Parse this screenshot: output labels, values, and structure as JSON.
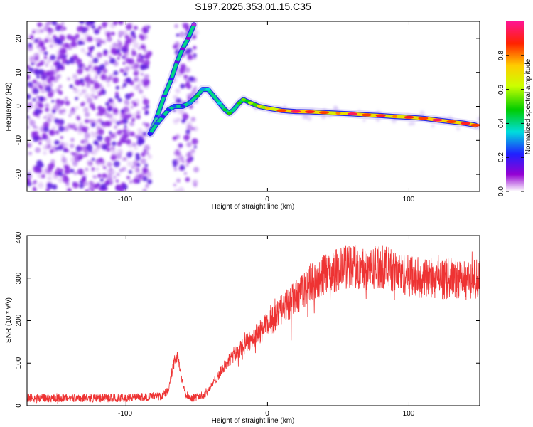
{
  "title": "S197.2025.353.01.15.C35",
  "chart_data": [
    {
      "type": "heatmap",
      "name": "spectrogram",
      "xlabel": "Height of straight line (km)",
      "ylabel": "Frequency (Hz)",
      "xlim": [
        -170,
        150
      ],
      "ylim": [
        -25,
        25
      ],
      "xticks": [
        -100,
        0,
        100
      ],
      "yticks": [
        -20,
        -10,
        0,
        10,
        20
      ],
      "xtick_labels": [
        "-100",
        "0",
        "100"
      ],
      "ytick_labels": [
        "-20",
        "-10",
        "0",
        "10",
        "20"
      ],
      "colorbar": {
        "label": "Normalized spectral amplitude",
        "range": [
          0,
          1
        ],
        "ticks": [
          0,
          0.2,
          0.4,
          0.6,
          0.8
        ],
        "tick_labels": [
          "0.0",
          "0.2",
          "0.4",
          "0.6",
          "0.8"
        ]
      },
      "trace": {
        "x": [
          -83,
          -78,
          -74,
          -70,
          -66,
          -60,
          -55,
          -50,
          -46,
          -42,
          -38,
          -34,
          -30,
          -27,
          -24,
          -20,
          -17,
          -12,
          -6,
          0,
          10,
          20,
          30,
          40,
          50,
          60,
          70,
          80,
          90,
          100,
          110,
          120,
          130,
          140,
          147
        ],
        "y": [
          -8,
          -5,
          -3,
          -1,
          0,
          0,
          1,
          3,
          5,
          5,
          3,
          1,
          -1,
          -2,
          -1,
          1,
          2,
          1,
          0,
          -0.5,
          -1.2,
          -1.5,
          -1.6,
          -1.8,
          -2,
          -2.2,
          -2.5,
          -2.7,
          -3,
          -3.2,
          -3.5,
          -4,
          -4.5,
          -5,
          -5.5
        ],
        "amplitude": [
          0.2,
          0.25,
          0.2,
          0.22,
          0.25,
          0.2,
          0.3,
          0.45,
          0.3,
          0.35,
          0.4,
          0.35,
          0.45,
          0.5,
          0.4,
          0.5,
          0.55,
          0.6,
          0.7,
          0.75,
          0.85,
          0.95,
          0.9,
          0.85,
          0.8,
          0.95,
          0.85,
          0.9,
          0.8,
          0.9,
          0.85,
          0.95,
          0.85,
          0.9,
          0.85
        ]
      },
      "branch": {
        "x": [
          -83,
          -78,
          -73,
          -68,
          -64,
          -60,
          -56,
          -52
        ],
        "y": [
          -8,
          -3,
          3,
          8,
          13,
          17,
          20,
          24
        ],
        "amplitude": [
          0.2,
          0.22,
          0.18,
          0.2,
          0.15,
          0.12,
          0.1,
          0.08
        ]
      }
    },
    {
      "type": "line",
      "name": "snr",
      "xlabel": "Height of straight line (km)",
      "ylabel": "SNR (10 * v/v)",
      "xlim": [
        -170,
        150
      ],
      "ylim": [
        0,
        400
      ],
      "xticks": [
        -100,
        0,
        100
      ],
      "yticks": [
        0,
        100,
        200,
        300,
        400
      ],
      "xtick_labels": [
        "-100",
        "0",
        "100"
      ],
      "ytick_labels": [
        "0",
        "100",
        "200",
        "300",
        "400"
      ],
      "color": "#ee3333",
      "envelope": {
        "x": [
          -170,
          -100,
          -75,
          -70,
          -67,
          -64,
          -61,
          -58,
          -55,
          -50,
          -45,
          -40,
          -35,
          -30,
          -25,
          -20,
          -15,
          -10,
          -5,
          0,
          5,
          10,
          15,
          20,
          25,
          30,
          40,
          50,
          60,
          70,
          80,
          90,
          100,
          110,
          120,
          130,
          140,
          150
        ],
        "y": [
          18,
          18,
          22,
          35,
          90,
          120,
          70,
          30,
          18,
          20,
          25,
          45,
          70,
          95,
          115,
          130,
          145,
          160,
          175,
          190,
          205,
          225,
          240,
          255,
          265,
          290,
          305,
          320,
          330,
          320,
          330,
          315,
          305,
          300,
          295,
          300,
          295,
          300
        ]
      }
    }
  ]
}
